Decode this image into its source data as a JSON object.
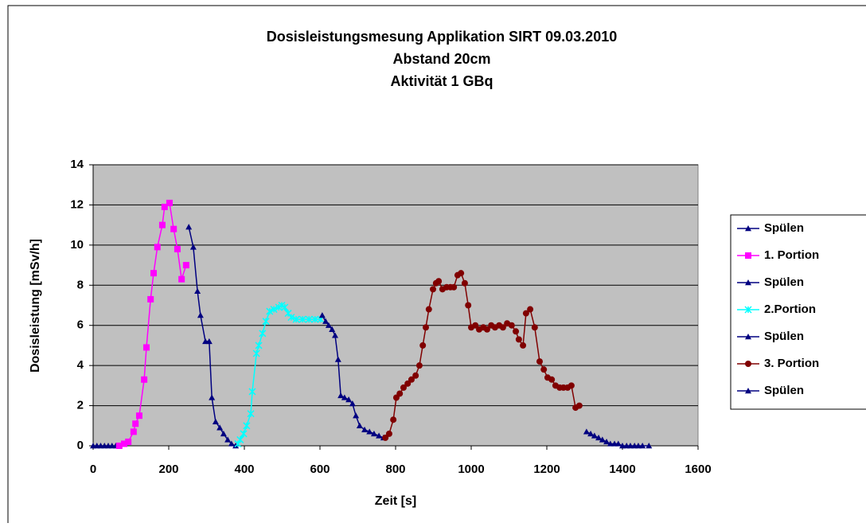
{
  "chart_data": {
    "type": "line",
    "title": [
      "Dosisleistungsmesung Applikation SIRT 09.03.2010",
      "Abstand 20cm",
      "Aktivität 1 GBq"
    ],
    "x_label": "Zeit [s]",
    "y_label": "Dosisleistung [mSv/h]",
    "xlim": [
      0,
      1600
    ],
    "xticks": [
      0,
      200,
      400,
      600,
      800,
      1000,
      1200,
      1400,
      1600
    ],
    "ylim": [
      0,
      14
    ],
    "yticks": [
      0,
      2,
      4,
      6,
      8,
      10,
      12,
      14
    ],
    "grid": true,
    "series": [
      {
        "name": "Spülen",
        "color": "#000080",
        "marker": "triangle",
        "x": [
          0,
          10,
          20,
          30,
          40,
          50,
          60,
          69
        ],
        "values": [
          0,
          0,
          0,
          0,
          0,
          0,
          0,
          0
        ]
      },
      {
        "name": "1. Portion",
        "color": "#ff00ff",
        "marker": "square",
        "x": [
          69,
          82,
          93,
          107,
          112,
          122,
          135,
          141,
          152,
          160,
          170,
          183,
          189,
          202,
          213,
          223,
          234,
          246
        ],
        "values": [
          0,
          0.1,
          0.2,
          0.7,
          1.1,
          1.5,
          3.3,
          4.9,
          7.3,
          8.6,
          9.9,
          11,
          11.9,
          12.1,
          10.8,
          9.8,
          8.3,
          9
        ]
      },
      {
        "name": "Spülen",
        "color": "#000080",
        "marker": "triangle",
        "x": [
          253,
          265,
          276,
          284,
          297,
          307,
          314,
          324,
          335,
          345,
          356,
          366,
          377
        ],
        "values": [
          10.9,
          9.9,
          7.7,
          6.5,
          5.2,
          5.2,
          2.4,
          1.2,
          0.9,
          0.6,
          0.3,
          0.1,
          0
        ]
      },
      {
        "name": "2.Portion",
        "color": "#00ffff",
        "marker": "x",
        "x": [
          383,
          389,
          398,
          406,
          417,
          421,
          432,
          438,
          448,
          457,
          467,
          478,
          491,
          499,
          507,
          516,
          524,
          537,
          554,
          571,
          587,
          602
        ],
        "values": [
          0.1,
          0.3,
          0.6,
          1,
          1.6,
          2.7,
          4.6,
          5,
          5.6,
          6.2,
          6.7,
          6.8,
          6.9,
          7,
          6.9,
          6.6,
          6.4,
          6.3,
          6.3,
          6.3,
          6.3,
          6.3
        ]
      },
      {
        "name": "Spülen",
        "color": "#000080",
        "marker": "triangle",
        "x": [
          606,
          615,
          623,
          632,
          640,
          648,
          655,
          665,
          676,
          686,
          695,
          705,
          718,
          731,
          743,
          756,
          768
        ],
        "values": [
          6.5,
          6.2,
          6,
          5.8,
          5.5,
          4.3,
          2.5,
          2.4,
          2.3,
          2.1,
          1.5,
          1,
          0.8,
          0.7,
          0.6,
          0.5,
          0.4
        ]
      },
      {
        "name": "3. Portion",
        "color": "#800000",
        "marker": "circle",
        "x": [
          773,
          783,
          794,
          802,
          811,
          821,
          832,
          842,
          853,
          863,
          872,
          880,
          888,
          899,
          907,
          914,
          924,
          935,
          945,
          954,
          964,
          973,
          983,
          992,
          1000,
          1011,
          1021,
          1032,
          1042,
          1053,
          1063,
          1074,
          1084,
          1095,
          1107,
          1118,
          1126,
          1137,
          1145,
          1156,
          1168,
          1181,
          1192,
          1202,
          1213,
          1223,
          1234,
          1244,
          1255,
          1265,
          1276,
          1286
        ],
        "values": [
          0.4,
          0.6,
          1.3,
          2.4,
          2.6,
          2.9,
          3.1,
          3.3,
          3.5,
          4,
          5,
          5.9,
          6.8,
          7.8,
          8.1,
          8.2,
          7.8,
          7.9,
          7.9,
          7.9,
          8.5,
          8.6,
          8.1,
          7,
          5.9,
          6,
          5.8,
          5.9,
          5.8,
          6,
          5.9,
          6,
          5.9,
          6.1,
          6,
          5.7,
          5.3,
          5,
          6.6,
          6.8,
          5.9,
          4.2,
          3.8,
          3.4,
          3.3,
          3,
          2.9,
          2.9,
          2.9,
          3,
          1.9,
          2
        ]
      },
      {
        "name": "Spülen",
        "color": "#000080",
        "marker": "triangle",
        "x": [
          1305,
          1316,
          1326,
          1337,
          1347,
          1358,
          1368,
          1379,
          1389,
          1400,
          1411,
          1421,
          1432,
          1442,
          1453,
          1470
        ],
        "values": [
          0.7,
          0.6,
          0.5,
          0.4,
          0.3,
          0.2,
          0.1,
          0.1,
          0.1,
          0,
          0,
          0,
          0,
          0,
          0,
          0
        ]
      }
    ]
  }
}
